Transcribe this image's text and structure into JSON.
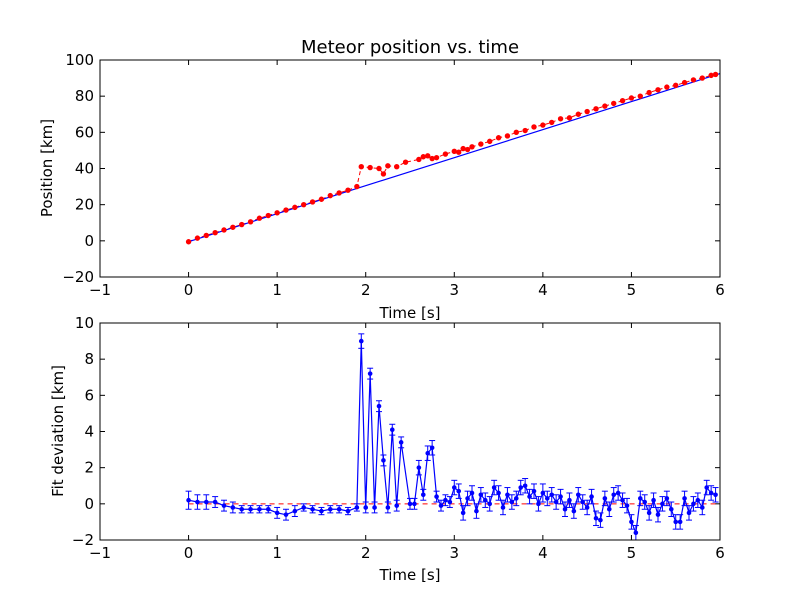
{
  "chart_data": [
    {
      "type": "scatter",
      "title": "Meteor position vs. time",
      "xlabel": "Time [s]",
      "ylabel": "Position [km]",
      "xlim": [
        -1,
        6
      ],
      "ylim": [
        -20,
        100
      ],
      "xticks": [
        "−1",
        "0",
        "1",
        "2",
        "3",
        "4",
        "5",
        "6"
      ],
      "yticks": [
        "−20",
        "0",
        "20",
        "40",
        "60",
        "80",
        "100"
      ],
      "xtick_values": [
        -1,
        0,
        1,
        2,
        3,
        4,
        5,
        6
      ],
      "ytick_values": [
        -20,
        0,
        20,
        40,
        60,
        80,
        100
      ],
      "fit_line": {
        "x": [
          0,
          6
        ],
        "y": [
          -0.5,
          92.5
        ],
        "color": "#0000ff"
      },
      "marker_color": "#ff0000",
      "series": [
        {
          "x": [
            0.0,
            0.1,
            0.2,
            0.3,
            0.4,
            0.5,
            0.6,
            0.7,
            0.8,
            0.9,
            1.0,
            1.1,
            1.2,
            1.3,
            1.4,
            1.5,
            1.6,
            1.7,
            1.8,
            1.9,
            1.95,
            2.05,
            2.15,
            2.2,
            2.25,
            2.35,
            2.45,
            2.6,
            2.65,
            2.7,
            2.75,
            2.8,
            2.9,
            3.0,
            3.05,
            3.1,
            3.15,
            3.2,
            3.3,
            3.4,
            3.5,
            3.6,
            3.7,
            3.8,
            3.9,
            4.0,
            4.1,
            4.2,
            4.3,
            4.4,
            4.5,
            4.6,
            4.7,
            4.8,
            4.9,
            5.0,
            5.1,
            5.2,
            5.3,
            5.4,
            5.5,
            5.6,
            5.7,
            5.8,
            5.9,
            5.95
          ],
          "y": [
            -0.5,
            1.5,
            3.0,
            4.5,
            6.0,
            7.5,
            9.0,
            10.5,
            12.5,
            14.0,
            15.5,
            17.0,
            18.5,
            20.0,
            21.5,
            23.0,
            25.0,
            26.5,
            28.0,
            30.0,
            41.0,
            40.5,
            40.0,
            37.0,
            41.5,
            41.0,
            43.5,
            45.0,
            46.5,
            47.0,
            45.5,
            46.0,
            48.0,
            49.5,
            49.0,
            51.0,
            50.5,
            52.0,
            53.5,
            55.0,
            57.0,
            58.0,
            60.0,
            61.0,
            63.0,
            64.0,
            65.5,
            67.5,
            68.0,
            70.0,
            71.5,
            73.0,
            74.5,
            76.0,
            77.5,
            79.0,
            80.0,
            82.0,
            83.5,
            85.0,
            86.0,
            87.5,
            89.0,
            90.0,
            91.5,
            92.0
          ]
        }
      ]
    },
    {
      "type": "line",
      "title": "",
      "xlabel": "Time [s]",
      "ylabel": "Fit deviation [km]",
      "xlim": [
        -1,
        6
      ],
      "ylim": [
        -2,
        10
      ],
      "xticks": [
        "−1",
        "0",
        "1",
        "2",
        "3",
        "4",
        "5",
        "6"
      ],
      "yticks": [
        "−2",
        "0",
        "2",
        "4",
        "6",
        "8",
        "10"
      ],
      "xtick_values": [
        -1,
        0,
        1,
        2,
        3,
        4,
        5,
        6
      ],
      "ytick_values": [
        -2,
        0,
        2,
        4,
        6,
        8,
        10
      ],
      "zero_line_color": "#ff0000",
      "series_color": "#0000ff",
      "series": [
        {
          "x": [
            0.0,
            0.1,
            0.2,
            0.3,
            0.4,
            0.5,
            0.6,
            0.7,
            0.8,
            0.9,
            1.0,
            1.1,
            1.2,
            1.3,
            1.4,
            1.5,
            1.6,
            1.7,
            1.8,
            1.9,
            1.95,
            2.0,
            2.05,
            2.1,
            2.15,
            2.2,
            2.25,
            2.3,
            2.35,
            2.4,
            2.5,
            2.55,
            2.6,
            2.65,
            2.7,
            2.75,
            2.8,
            2.85,
            2.9,
            2.95,
            3.0,
            3.05,
            3.1,
            3.15,
            3.2,
            3.25,
            3.3,
            3.35,
            3.4,
            3.45,
            3.5,
            3.55,
            3.6,
            3.65,
            3.7,
            3.75,
            3.8,
            3.85,
            3.9,
            3.95,
            4.0,
            4.05,
            4.1,
            4.15,
            4.2,
            4.25,
            4.3,
            4.35,
            4.4,
            4.45,
            4.5,
            4.55,
            4.6,
            4.65,
            4.7,
            4.75,
            4.8,
            4.85,
            4.9,
            4.95,
            5.0,
            5.05,
            5.1,
            5.15,
            5.2,
            5.25,
            5.3,
            5.35,
            5.4,
            5.45,
            5.5,
            5.55,
            5.6,
            5.65,
            5.7,
            5.75,
            5.8,
            5.85,
            5.9,
            5.95
          ],
          "y": [
            0.2,
            0.1,
            0.1,
            0.1,
            -0.1,
            -0.2,
            -0.3,
            -0.3,
            -0.3,
            -0.3,
            -0.5,
            -0.6,
            -0.4,
            -0.2,
            -0.3,
            -0.4,
            -0.3,
            -0.3,
            -0.4,
            -0.2,
            9.0,
            -0.2,
            7.2,
            -0.2,
            5.4,
            2.4,
            -0.2,
            4.1,
            -0.1,
            3.4,
            0.0,
            0.0,
            2.0,
            0.5,
            2.8,
            3.1,
            0.4,
            -0.1,
            0.2,
            0.1,
            0.9,
            0.7,
            -0.5,
            0.3,
            0.6,
            -0.4,
            0.5,
            0.2,
            0.0,
            0.9,
            0.6,
            -0.2,
            0.5,
            0.1,
            0.3,
            0.9,
            1.0,
            0.4,
            0.7,
            0.0,
            0.6,
            0.3,
            0.5,
            0.1,
            0.4,
            -0.3,
            0.2,
            -0.4,
            0.5,
            0.1,
            -0.2,
            0.4,
            -0.8,
            -0.9,
            0.3,
            -0.3,
            0.5,
            0.6,
            0.2,
            -0.1,
            -1.0,
            -1.6,
            0.3,
            0.1,
            -0.5,
            0.2,
            -0.6,
            0.0,
            0.3,
            -0.3,
            -1.0,
            -1.0,
            0.3,
            -0.5,
            0.0,
            0.2,
            -0.2,
            0.9,
            0.6,
            0.5
          ],
          "err": [
            0.5,
            0.4,
            0.4,
            0.3,
            0.3,
            0.3,
            0.2,
            0.2,
            0.2,
            0.2,
            0.3,
            0.3,
            0.3,
            0.2,
            0.2,
            0.2,
            0.2,
            0.2,
            0.2,
            0.2,
            0.4,
            0.3,
            0.3,
            0.3,
            0.3,
            0.3,
            0.3,
            0.3,
            0.3,
            0.3,
            0.3,
            0.3,
            0.4,
            0.3,
            0.4,
            0.4,
            0.3,
            0.3,
            0.3,
            0.3,
            0.4,
            0.4,
            0.4,
            0.4,
            0.4,
            0.4,
            0.4,
            0.4,
            0.4,
            0.4,
            0.4,
            0.4,
            0.4,
            0.4,
            0.4,
            0.4,
            0.4,
            0.4,
            0.4,
            0.4,
            0.5,
            0.4,
            0.4,
            0.4,
            0.4,
            0.4,
            0.4,
            0.4,
            0.4,
            0.4,
            0.4,
            0.4,
            0.4,
            0.4,
            0.4,
            0.4,
            0.4,
            0.4,
            0.4,
            0.4,
            0.4,
            0.4,
            0.4,
            0.4,
            0.4,
            0.4,
            0.4,
            0.4,
            0.4,
            0.4,
            0.4,
            0.4,
            0.4,
            0.4,
            0.4,
            0.4,
            0.4,
            0.4,
            0.4,
            0.4
          ]
        }
      ]
    }
  ]
}
